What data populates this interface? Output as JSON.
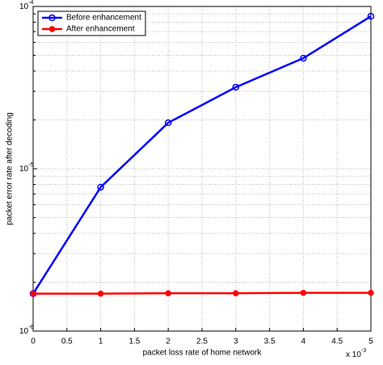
{
  "chart_data": {
    "type": "line",
    "x_label": "packet loss rate of home network",
    "y_label": "packet error rate after decoding",
    "x_multiplier": {
      "base": "x 10",
      "exponent": "-3"
    },
    "x": [
      0,
      1,
      2,
      3,
      4,
      5
    ],
    "series": [
      {
        "name": "Before enhancement",
        "color": "#0000ff",
        "marker": "open-circle",
        "values": [
          1.7e-06,
          7.7e-06,
          1.92e-05,
          3.18e-05,
          4.8e-05,
          8.7e-05
        ]
      },
      {
        "name": "After enhancement",
        "color": "#ff0000",
        "marker": "dot",
        "values": [
          1.7e-06,
          1.7e-06,
          1.71e-06,
          1.71e-06,
          1.72e-06,
          1.72e-06
        ]
      }
    ],
    "xlim": [
      0,
      5
    ],
    "xticks": [
      0,
      0.5,
      1,
      1.5,
      2,
      2.5,
      3,
      3.5,
      4,
      4.5,
      5
    ],
    "ylim": [
      1e-06,
      0.0001
    ],
    "y_log": true,
    "yticks": [
      {
        "value": 1e-06,
        "label": "10",
        "exponent": "-6"
      },
      {
        "value": 1e-05,
        "label": "10",
        "exponent": "-5"
      },
      {
        "value": 0.0001,
        "label": "10",
        "exponent": "-4"
      }
    ],
    "yminorticks": [
      2e-06,
      3e-06,
      4e-06,
      5e-06,
      6e-06,
      7e-06,
      8e-06,
      9e-06,
      2e-05,
      3e-05,
      4e-05,
      5e-05,
      6e-05,
      7e-05,
      8e-05,
      9e-05
    ],
    "grid": true,
    "legend": "upper left"
  }
}
